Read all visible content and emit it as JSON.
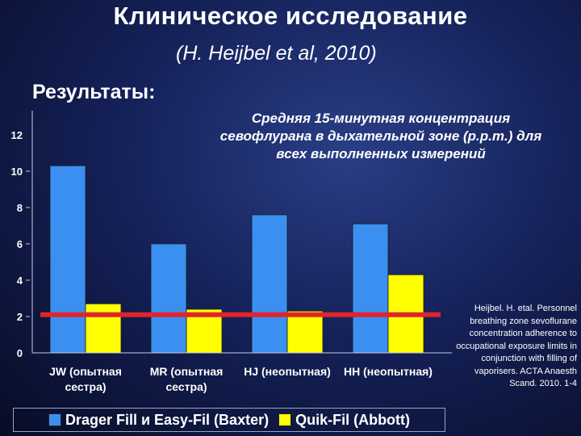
{
  "slide": {
    "title": "Клиническое исследование",
    "subtitle": "(H. Heijbel et al, 2010)",
    "section": "Результаты:",
    "citation": "Heijbel. H. etal. Personnel breathing zone sevoflurane concentration adherence to occupational exposure limits in conjunction with filling of vaporisers. ACTA Anaesth Scand. 2010. 1-4"
  },
  "chart_data": {
    "type": "bar",
    "title": "Средняя 15-минутная концентрация севофлурана в дыхательной зоне (p.p.m.) для всех выполненных измерений",
    "categories": [
      [
        "JW (опытная",
        "сестра)"
      ],
      [
        "MR (опытная",
        "сестра)"
      ],
      [
        "HJ (неопытная)"
      ],
      [
        "HH (неопытная)"
      ]
    ],
    "series": [
      {
        "name": "Drager Fill и Easy-Fil (Baxter)",
        "color": "#3b8ff0",
        "values": [
          10.3,
          6.0,
          7.6,
          7.1
        ]
      },
      {
        "name": "Quik-Fil (Abbott)",
        "color": "#ffff00",
        "values": [
          2.7,
          2.4,
          2.3,
          4.3
        ]
      }
    ],
    "reference_line": {
      "value": 2.1,
      "color": "#e0242a"
    },
    "ylim": [
      0,
      12
    ],
    "yticks": [
      0,
      2,
      4,
      6,
      8,
      10,
      12
    ],
    "legend_position": "bottom"
  }
}
